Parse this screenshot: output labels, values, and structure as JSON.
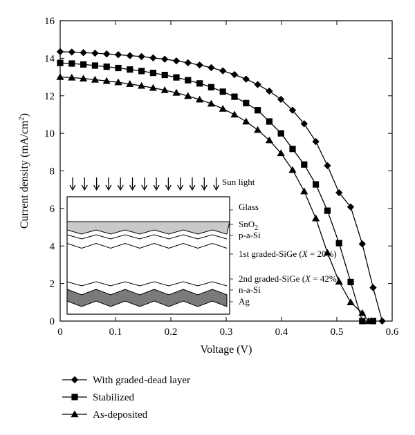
{
  "chart_data": {
    "type": "line",
    "xlabel": "Voltage (V)",
    "ylabel_main": "Current density (mA/cm",
    "ylabel_sup": "2",
    "ylabel_close": ")",
    "xlim": [
      0,
      0.6
    ],
    "ylim": [
      0,
      16
    ],
    "xticks": [
      0,
      0.1,
      0.2,
      0.3,
      0.4,
      0.5,
      0.6
    ],
    "xtick_labels": [
      "0",
      "0.1",
      "0.2",
      "0.3",
      "0.4",
      "0.5",
      "0.6"
    ],
    "yticks": [
      0,
      2,
      4,
      6,
      8,
      10,
      12,
      14,
      16
    ],
    "ytick_labels": [
      "0",
      "2",
      "4",
      "6",
      "8",
      "10",
      "12",
      "14",
      "16"
    ],
    "legend_position": "bottom-left, below plot",
    "series": [
      {
        "name": "With graded-dead layer",
        "marker": "diamond",
        "color": "#000000",
        "x": [
          0.0,
          0.021,
          0.042,
          0.063,
          0.084,
          0.105,
          0.126,
          0.147,
          0.168,
          0.189,
          0.21,
          0.231,
          0.252,
          0.273,
          0.294,
          0.315,
          0.336,
          0.357,
          0.378,
          0.399,
          0.42,
          0.441,
          0.462,
          0.483,
          0.504,
          0.525,
          0.546,
          0.5655,
          0.582
        ],
        "y": [
          14.35,
          14.33,
          14.3,
          14.27,
          14.23,
          14.19,
          14.14,
          14.09,
          14.02,
          13.95,
          13.86,
          13.76,
          13.64,
          13.5,
          13.33,
          13.13,
          12.89,
          12.6,
          12.25,
          11.81,
          11.23,
          10.51,
          9.56,
          8.28,
          6.84,
          6.08,
          4.11,
          1.78,
          0.0
        ]
      },
      {
        "name": "Stabilized",
        "marker": "square",
        "color": "#000000",
        "x": [
          0.0,
          0.021,
          0.042,
          0.063,
          0.084,
          0.105,
          0.126,
          0.147,
          0.168,
          0.189,
          0.21,
          0.231,
          0.252,
          0.273,
          0.294,
          0.315,
          0.336,
          0.357,
          0.378,
          0.399,
          0.42,
          0.441,
          0.462,
          0.483,
          0.504,
          0.525,
          0.546,
          0.5655
        ],
        "y": [
          13.75,
          13.72,
          13.67,
          13.61,
          13.55,
          13.48,
          13.4,
          13.32,
          13.22,
          13.11,
          12.98,
          12.83,
          12.66,
          12.46,
          12.22,
          11.95,
          11.61,
          11.23,
          10.63,
          10.0,
          9.17,
          8.34,
          7.28,
          5.88,
          4.15,
          2.08,
          0.0,
          0.0
        ]
      },
      {
        "name": "As-deposited",
        "marker": "triangle",
        "color": "#000000",
        "x": [
          0.0,
          0.021,
          0.042,
          0.063,
          0.084,
          0.105,
          0.126,
          0.147,
          0.168,
          0.189,
          0.21,
          0.231,
          0.252,
          0.273,
          0.294,
          0.315,
          0.336,
          0.357,
          0.378,
          0.399,
          0.42,
          0.441,
          0.462,
          0.483,
          0.504,
          0.525,
          0.546,
          0.5575
        ],
        "y": [
          13.0,
          12.97,
          12.92,
          12.86,
          12.79,
          12.72,
          12.63,
          12.53,
          12.42,
          12.3,
          12.16,
          11.99,
          11.8,
          11.58,
          11.31,
          11.0,
          10.63,
          10.18,
          9.63,
          8.94,
          8.05,
          6.91,
          5.47,
          3.64,
          2.1,
          1.0,
          0.43,
          0.0
        ]
      }
    ]
  },
  "inset": {
    "sun_light_label": "Sun light",
    "arrow_count": 13,
    "layers": [
      {
        "label": "Glass",
        "sub": "",
        "fill": "#ffffff"
      },
      {
        "label": "SnO",
        "sub": "2",
        "fill": "#c9c9c9"
      },
      {
        "label": "p-a-Si",
        "sub": "",
        "fill": "#ffffff"
      },
      {
        "label": "1st graded-SiGe (",
        "italic": "X",
        "tail": " = 20%)",
        "fill": "#ffffff"
      },
      {
        "label": "2nd graded-SiGe (",
        "italic": "X",
        "tail": " = 42%)",
        "fill": "#ffffff"
      },
      {
        "label": "n-a-Si",
        "sub": "",
        "fill": "#ffffff"
      },
      {
        "label": "Ag",
        "sub": "",
        "fill": "#7a7a7a"
      }
    ]
  }
}
